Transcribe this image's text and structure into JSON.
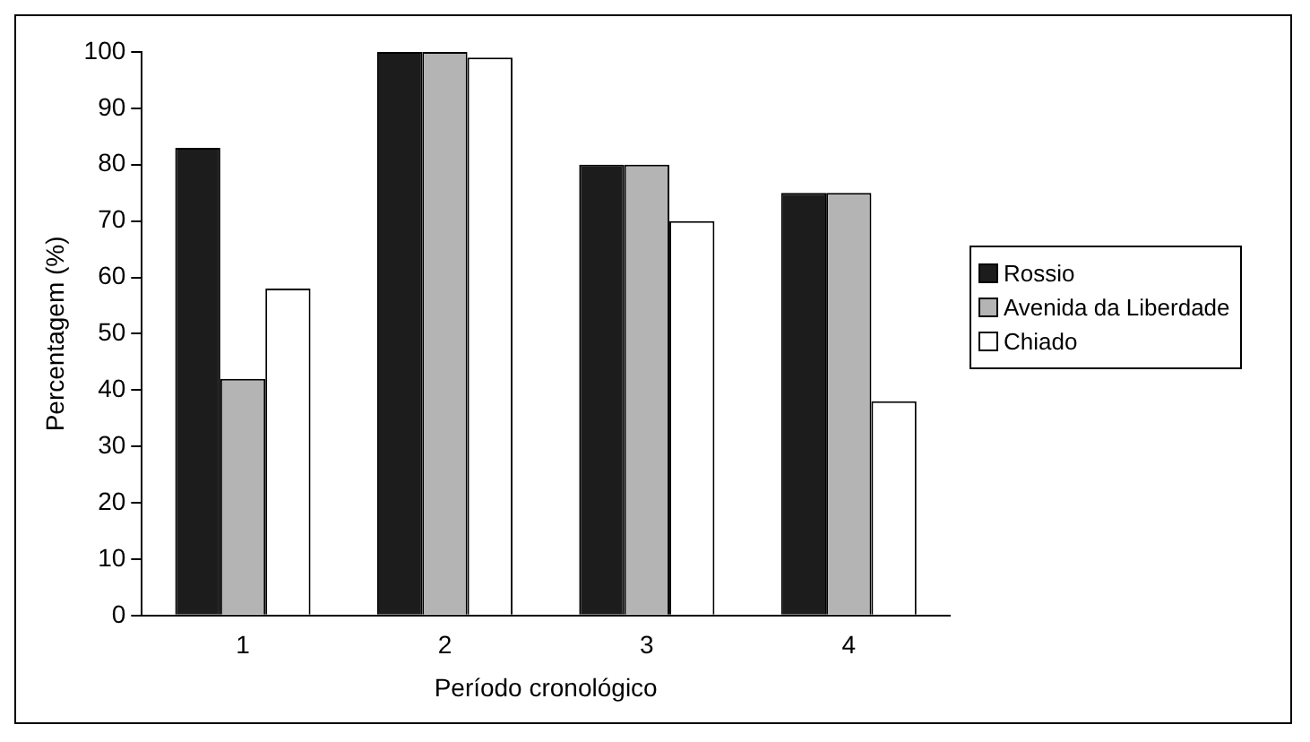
{
  "chart_data": {
    "type": "bar",
    "xlabel": "Período cronológico",
    "ylabel": "Percentagem (%)",
    "categories": [
      "1",
      "2",
      "3",
      "4"
    ],
    "series": [
      {
        "name": "Rossio",
        "color": "#1c1c1c",
        "values": [
          83,
          100,
          80,
          75
        ]
      },
      {
        "name": "Avenida da Liberdade",
        "color": "#b4b4b4",
        "values": [
          42,
          100,
          80,
          75
        ]
      },
      {
        "name": "Chiado",
        "color": "#ffffff",
        "values": [
          58,
          99,
          70,
          38
        ]
      }
    ],
    "ylim": [
      0,
      100
    ],
    "yticks": [
      0,
      10,
      20,
      30,
      40,
      50,
      60,
      70,
      80,
      90,
      100
    ],
    "grid": false,
    "legend": "right"
  }
}
